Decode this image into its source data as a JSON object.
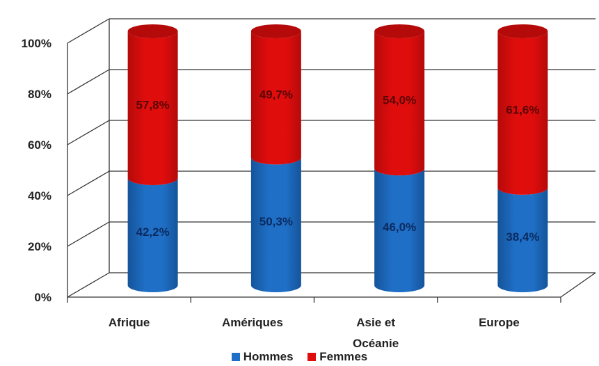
{
  "chart_data": {
    "type": "bar",
    "stacked": true,
    "percent": true,
    "three_d": true,
    "categories": [
      "Afrique",
      "Amériques",
      "Asie et Océanie",
      "Europe"
    ],
    "category_lines": [
      [
        "Afrique"
      ],
      [
        "Amériques"
      ],
      [
        "Asie et",
        "Océanie"
      ],
      [
        "Europe"
      ]
    ],
    "series": [
      {
        "name": "Hommes",
        "values": [
          42.2,
          50.3,
          46.0,
          38.4
        ],
        "labels": [
          "42,2%",
          "50,3%",
          "46,0%",
          "38,4%"
        ]
      },
      {
        "name": "Femmes",
        "values": [
          57.8,
          49.7,
          54.0,
          61.6
        ],
        "labels": [
          "57,8%",
          "49,7%",
          "54,0%",
          "61,6%"
        ]
      }
    ],
    "yticks": [
      "0%",
      "20%",
      "40%",
      "60%",
      "80%",
      "100%"
    ],
    "ylim": [
      0,
      100
    ],
    "grid": true,
    "legend_position": "bottom"
  },
  "colors": {
    "hommes": "#1f6fc6",
    "hommes_dark": "#15549a",
    "femmes": "#e00d0d",
    "femmes_dark": "#b50a0a",
    "label_hommes": "#0b2a5e",
    "label_femmes": "#5a0505",
    "grid": "#333333"
  },
  "legend": {
    "items": [
      {
        "name": "Hommes",
        "color": "#1f6fc6"
      },
      {
        "name": "Femmes",
        "color": "#e00d0d"
      }
    ]
  }
}
